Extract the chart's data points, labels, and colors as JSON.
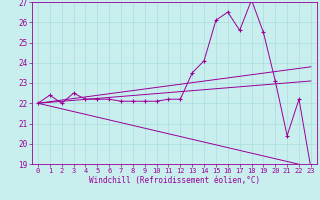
{
  "xlabel": "Windchill (Refroidissement éolien,°C)",
  "background_color": "#c8eeee",
  "line_color": "#990099",
  "grid_color": "#aadddd",
  "xlim": [
    -0.5,
    23.5
  ],
  "ylim": [
    19,
    27
  ],
  "yticks": [
    19,
    20,
    21,
    22,
    23,
    24,
    25,
    26,
    27
  ],
  "xticks": [
    0,
    1,
    2,
    3,
    4,
    5,
    6,
    7,
    8,
    9,
    10,
    11,
    12,
    13,
    14,
    15,
    16,
    17,
    18,
    19,
    20,
    21,
    22,
    23
  ],
  "series1_x": [
    0,
    1,
    2,
    3,
    4,
    5,
    6,
    7,
    8,
    9,
    10,
    11,
    12,
    13,
    14,
    15,
    16,
    17,
    18,
    19,
    20,
    21,
    22,
    23
  ],
  "series1_y": [
    22.0,
    22.4,
    22.0,
    22.5,
    22.2,
    22.2,
    22.2,
    22.1,
    22.1,
    22.1,
    22.1,
    22.2,
    22.2,
    23.5,
    24.1,
    26.1,
    26.5,
    25.6,
    27.1,
    25.5,
    23.1,
    20.4,
    22.2,
    18.8
  ],
  "series2_x": [
    0,
    23
  ],
  "series2_y": [
    22.0,
    23.8
  ],
  "series3_x": [
    0,
    23
  ],
  "series3_y": [
    22.0,
    23.1
  ],
  "series4_x": [
    0,
    23
  ],
  "series4_y": [
    22.0,
    18.85
  ]
}
